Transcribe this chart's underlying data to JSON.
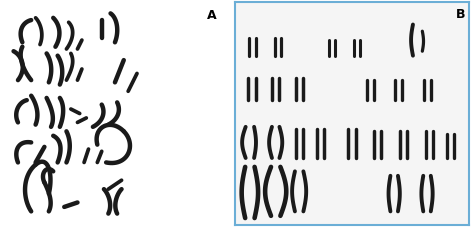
{
  "figure_width": 4.74,
  "figure_height": 2.27,
  "dpi": 100,
  "bg_color": "#ffffff",
  "panel_A": {
    "label": "A",
    "bg_color": "#e0e0e0"
  },
  "panel_B": {
    "label": "B",
    "bg_color": "#f5f5f5",
    "border_color": "#6baed6",
    "border_width": 1.5
  },
  "chrom_A_color": "#1a1a1a",
  "chrom_A_lw": 3.2,
  "chrom_B_color": "#1a1a1a",
  "chrom_B_lw": 2.8
}
